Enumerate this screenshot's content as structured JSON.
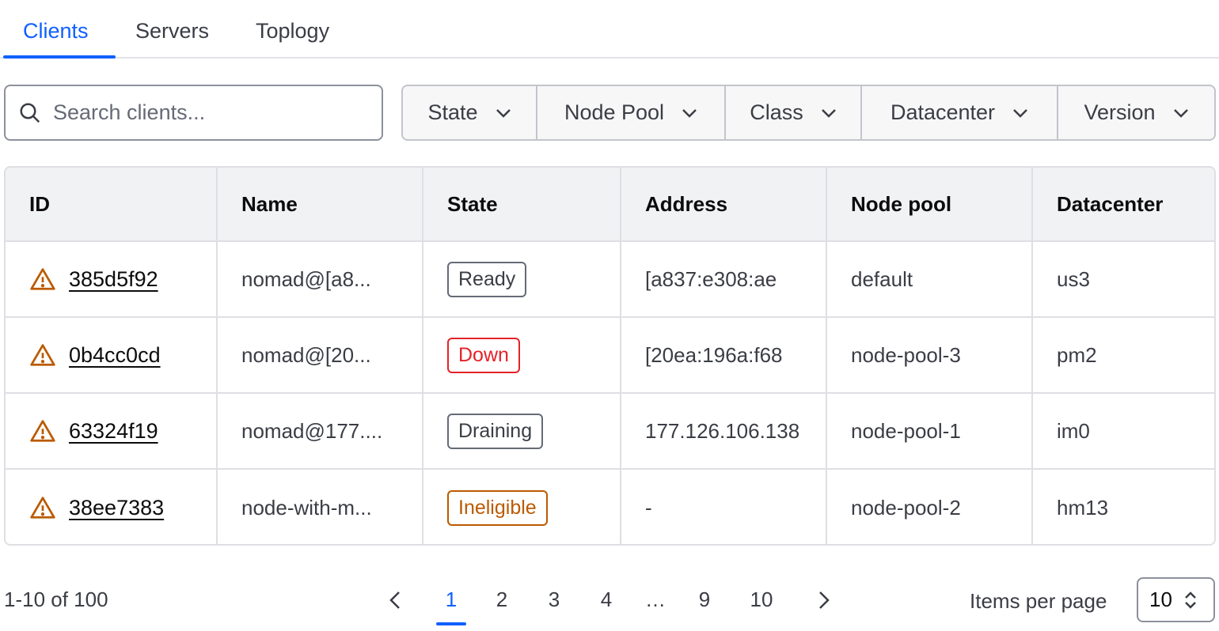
{
  "tabs": [
    {
      "label": "Clients",
      "active": true
    },
    {
      "label": "Servers"
    },
    {
      "label": "Toplogy"
    }
  ],
  "search": {
    "placeholder": "Search clients...",
    "value": ""
  },
  "filters": [
    "State",
    "Node Pool",
    "Class",
    "Datacenter",
    "Version"
  ],
  "table": {
    "columns": [
      "ID",
      "Name",
      "State",
      "Address",
      "Node pool",
      "Datacenter"
    ],
    "rows": [
      {
        "id": "385d5f92",
        "name": "nomad@[a8...",
        "state": "Ready",
        "address": "[a837:e308:ae",
        "pool": "default",
        "dc": "us3"
      },
      {
        "id": "0b4cc0cd",
        "name": "nomad@[20...",
        "state": "Down",
        "address": "[20ea:196a:f68",
        "pool": "node-pool-3",
        "dc": "pm2"
      },
      {
        "id": "63324f19",
        "name": "nomad@177....",
        "state": "Draining",
        "address": "177.126.106.138",
        "pool": "node-pool-1",
        "dc": "im0"
      },
      {
        "id": "38ee7383",
        "name": "node-with-m...",
        "state": "Ineligible",
        "address": "-",
        "pool": "node-pool-2",
        "dc": "hm13"
      }
    ]
  },
  "pagination": {
    "summary": "1-10 of 100",
    "pages": [
      "1",
      "2",
      "3",
      "4",
      "…",
      "9",
      "10"
    ],
    "current": "1",
    "items_per_page_label": "Items per page",
    "items_per_page": "10"
  },
  "colors": {
    "accent": "#1060ff",
    "warning": "#bb5a00",
    "critical": "#e52228"
  }
}
